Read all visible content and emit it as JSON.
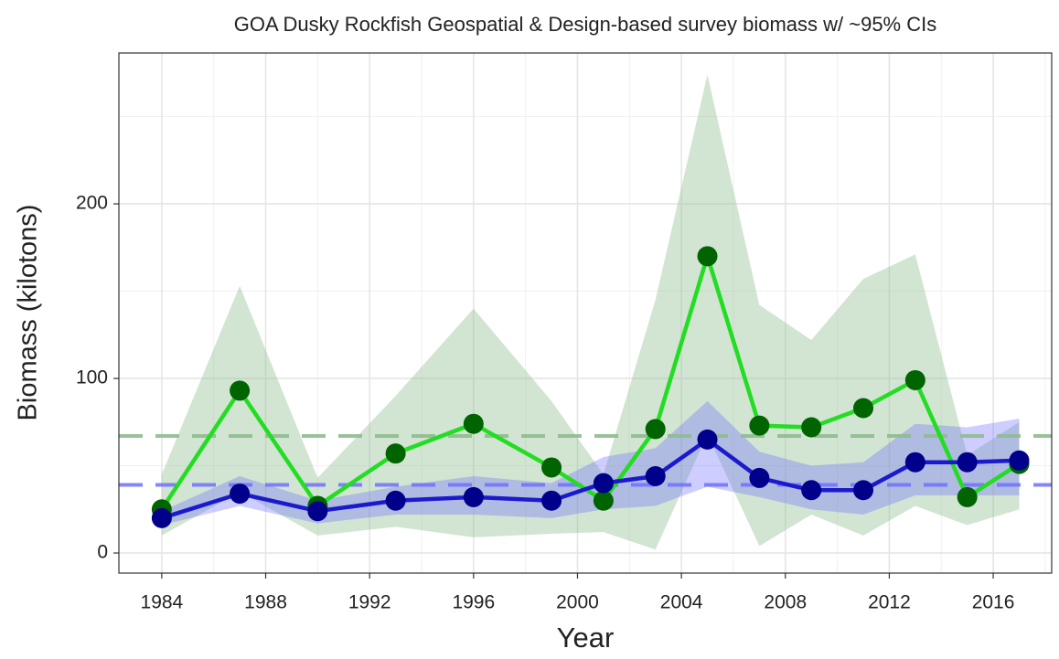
{
  "chart_data": {
    "type": "line",
    "title": "GOA Dusky Rockfish Geospatial & Design-based survey biomass w/ ~95% CIs",
    "x_label": "Year",
    "y_label": "Biomass (kilotons)",
    "x": [
      1984,
      1987,
      1990,
      1993,
      1996,
      1999,
      2001,
      2003,
      2005,
      2007,
      2009,
      2011,
      2013,
      2015,
      2017
    ],
    "series": [
      {
        "color": "#22dd22",
        "point_color": "#006400",
        "band_color": "#8fbc8f",
        "mean": 67,
        "values": [
          25,
          93,
          27,
          57,
          74,
          49,
          30,
          71,
          170,
          73,
          72,
          83,
          99,
          32,
          51
        ],
        "upper": [
          45,
          153,
          43,
          90,
          140,
          87,
          45,
          145,
          274,
          142,
          122,
          157,
          171,
          56,
          75
        ],
        "lower": [
          10,
          35,
          10,
          15,
          9,
          11,
          12,
          2,
          68,
          4,
          22,
          10,
          27,
          16,
          25
        ]
      },
      {
        "color": "#1a1acc",
        "point_color": "#00008b",
        "band_color": "#7070ff",
        "mean": 39,
        "values": [
          20,
          34,
          24,
          30,
          32,
          30,
          40,
          44,
          65,
          43,
          36,
          36,
          52,
          52,
          53
        ],
        "upper": [
          24,
          44,
          30,
          38,
          44,
          40,
          55,
          60,
          87,
          58,
          50,
          52,
          74,
          72,
          77
        ],
        "lower": [
          16,
          27,
          17,
          22,
          22,
          20,
          25,
          27,
          38,
          32,
          25,
          22,
          33,
          33,
          33
        ]
      }
    ],
    "xlim": [
      1982.35,
      2018.25
    ],
    "ylim": [
      -11.5,
      286.4
    ],
    "xticks": [
      1984,
      1988,
      1992,
      1996,
      2000,
      2004,
      2008,
      2012,
      2016
    ],
    "yticks": [
      0,
      100,
      200
    ],
    "grid": true
  }
}
